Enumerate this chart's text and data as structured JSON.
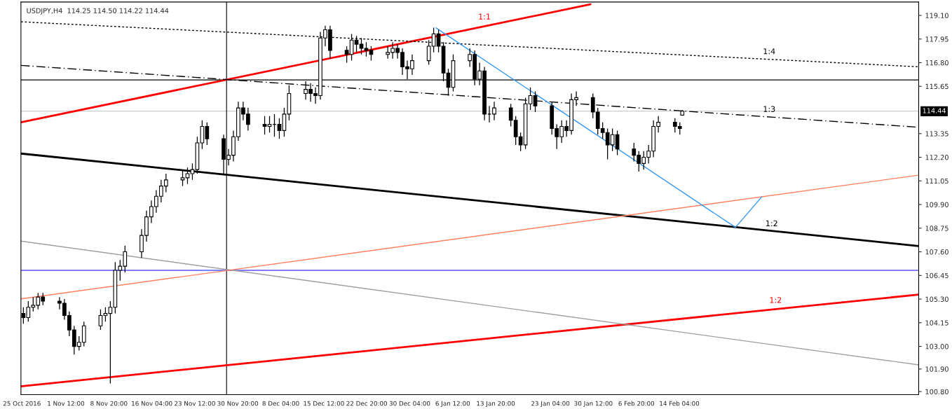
{
  "chart_data": {
    "type": "candlestick",
    "title": "USDJPY,H4  114.25 114.50 114.22 114.44",
    "x": [
      "2016-10-25T06:00",
      "2016-10-26T02:00",
      "2016-10-26T22:00",
      "2016-10-27T18:00",
      "2016-10-28T14:00",
      "2016-10-31T10:00",
      "2016-11-01T06:00",
      "2016-11-02T02:00",
      "2016-11-02T22:00",
      "2016-11-03T18:00",
      "2016-11-04T14:00",
      "2016-11-07T10:00",
      "2016-11-08T06:00",
      "2016-11-09T02:00",
      "2016-11-09T22:00",
      "2016-11-10T18:00",
      "2016-11-11T14:00",
      "2016-11-14T10:00",
      "2016-11-15T06:00",
      "2016-11-16T02:00",
      "2016-11-16T22:00",
      "2016-11-17T18:00",
      "2016-11-18T14:00",
      "2016-11-21T10:00",
      "2016-11-22T06:00",
      "2016-11-23T02:00",
      "2016-11-23T22:00",
      "2016-11-24T18:00",
      "2016-11-25T14:00",
      "2016-11-28T10:00",
      "2016-11-29T06:00",
      "2016-11-30T02:00",
      "2016-11-30T22:00",
      "2016-12-01T18:00",
      "2016-12-02T14:00",
      "2016-12-05T10:00",
      "2016-12-06T06:00",
      "2016-12-07T02:00",
      "2016-12-07T22:00",
      "2016-12-08T18:00",
      "2016-12-09T14:00",
      "2016-12-12T10:00",
      "2016-12-13T06:00",
      "2016-12-14T02:00",
      "2016-12-14T22:00",
      "2016-12-15T18:00",
      "2016-12-16T14:00",
      "2016-12-19T10:00",
      "2016-12-20T06:00",
      "2016-12-21T02:00",
      "2016-12-21T22:00",
      "2016-12-22T18:00",
      "2016-12-23T14:00",
      "2016-12-26T10:00",
      "2016-12-27T06:00",
      "2016-12-28T02:00",
      "2016-12-28T22:00",
      "2016-12-29T18:00",
      "2016-12-30T14:00",
      "2017-01-02T10:00",
      "2017-01-03T06:00",
      "2017-01-04T02:00",
      "2017-01-04T22:00",
      "2017-01-05T18:00",
      "2017-01-06T14:00",
      "2017-01-09T10:00",
      "2017-01-10T06:00",
      "2017-01-11T02:00",
      "2017-01-11T22:00",
      "2017-01-12T18:00",
      "2017-01-13T14:00",
      "2017-01-16T10:00",
      "2017-01-17T06:00",
      "2017-01-18T02:00",
      "2017-01-18T22:00",
      "2017-01-19T18:00",
      "2017-01-20T14:00",
      "2017-01-23T10:00",
      "2017-01-24T06:00",
      "2017-01-25T02:00",
      "2017-01-25T22:00",
      "2017-01-26T18:00",
      "2017-01-27T14:00",
      "2017-01-30T10:00",
      "2017-01-31T06:00",
      "2017-02-01T02:00",
      "2017-02-01T22:00",
      "2017-02-02T18:00",
      "2017-02-03T14:00",
      "2017-02-06T10:00",
      "2017-02-07T06:00",
      "2017-02-08T02:00",
      "2017-02-08T22:00",
      "2017-02-09T18:00",
      "2017-02-10T14:00",
      "2017-02-13T10:00",
      "2017-02-14T06:00",
      "2017-02-14T16:00"
    ],
    "ohlc": [
      [
        104.6,
        104.9,
        104.1,
        104.4
      ],
      [
        104.4,
        105.2,
        104.2,
        104.9
      ],
      [
        104.9,
        105.4,
        104.7,
        105.0
      ],
      [
        105.0,
        105.6,
        104.8,
        105.4
      ],
      [
        105.4,
        105.6,
        105.0,
        105.2
      ],
      [
        105.2,
        105.4,
        104.8,
        105.1
      ],
      [
        105.1,
        105.3,
        104.3,
        104.5
      ],
      [
        104.5,
        104.7,
        103.5,
        103.8
      ],
      [
        103.8,
        104.0,
        102.6,
        103.0
      ],
      [
        103.0,
        103.5,
        102.8,
        103.2
      ],
      [
        103.2,
        104.2,
        103.0,
        104.0
      ],
      [
        104.0,
        104.8,
        103.8,
        104.5
      ],
      [
        104.5,
        104.9,
        104.2,
        104.6
      ],
      [
        104.6,
        105.2,
        101.2,
        104.9
      ],
      [
        104.9,
        107.1,
        104.6,
        106.7
      ],
      [
        106.7,
        107.2,
        106.2,
        106.9
      ],
      [
        106.9,
        107.9,
        106.6,
        107.6
      ],
      [
        107.6,
        108.7,
        107.3,
        108.4
      ],
      [
        108.4,
        109.6,
        108.1,
        109.3
      ],
      [
        109.3,
        110.1,
        109.0,
        109.8
      ],
      [
        109.8,
        110.6,
        109.5,
        110.3
      ],
      [
        110.3,
        111.1,
        110.0,
        110.8
      ],
      [
        110.8,
        111.4,
        110.5,
        111.1
      ],
      [
        111.1,
        111.6,
        110.8,
        111.2
      ],
      [
        111.2,
        111.7,
        110.9,
        111.4
      ],
      [
        111.4,
        111.9,
        111.1,
        111.6
      ],
      [
        111.6,
        113.2,
        111.4,
        112.9
      ],
      [
        112.9,
        114.0,
        112.6,
        113.7
      ],
      [
        113.7,
        113.9,
        112.8,
        113.1
      ],
      [
        113.1,
        113.3,
        111.4,
        112.1
      ],
      [
        112.1,
        112.6,
        111.8,
        112.3
      ],
      [
        112.3,
        113.5,
        112.0,
        113.2
      ],
      [
        113.2,
        114.9,
        113.0,
        114.6
      ],
      [
        114.6,
        114.9,
        114.0,
        114.3
      ],
      [
        114.3,
        114.6,
        113.5,
        113.8
      ],
      [
        113.8,
        114.2,
        113.3,
        113.7
      ],
      [
        113.7,
        114.2,
        113.4,
        113.8
      ],
      [
        113.8,
        114.3,
        113.2,
        113.8
      ],
      [
        113.8,
        114.1,
        113.1,
        113.5
      ],
      [
        113.5,
        114.6,
        113.2,
        114.3
      ],
      [
        114.3,
        115.7,
        114.0,
        115.3
      ],
      [
        115.3,
        115.9,
        115.0,
        115.5
      ],
      [
        115.5,
        115.8,
        114.9,
        115.3
      ],
      [
        115.3,
        115.6,
        114.8,
        115.2
      ],
      [
        115.2,
        118.3,
        115.0,
        118.0
      ],
      [
        118.0,
        118.6,
        117.6,
        118.4
      ],
      [
        118.4,
        118.6,
        117.0,
        117.4
      ],
      [
        117.4,
        117.6,
        116.8,
        117.2
      ],
      [
        117.2,
        118.2,
        116.9,
        117.9
      ],
      [
        117.9,
        118.1,
        117.3,
        117.7
      ],
      [
        117.7,
        118.0,
        117.2,
        117.5
      ],
      [
        117.5,
        117.8,
        117.1,
        117.4
      ],
      [
        117.4,
        117.6,
        116.9,
        117.2
      ],
      [
        117.2,
        117.6,
        117.0,
        117.3
      ],
      [
        117.3,
        117.8,
        117.0,
        117.5
      ],
      [
        117.5,
        117.7,
        117.0,
        117.3
      ],
      [
        117.3,
        117.5,
        116.2,
        116.6
      ],
      [
        116.6,
        116.9,
        116.0,
        116.5
      ],
      [
        116.5,
        117.2,
        116.2,
        116.9
      ],
      [
        116.9,
        117.9,
        116.7,
        117.6
      ],
      [
        117.6,
        118.5,
        117.3,
        118.2
      ],
      [
        118.2,
        118.4,
        117.3,
        117.6
      ],
      [
        117.6,
        117.8,
        115.9,
        116.3
      ],
      [
        116.3,
        116.5,
        115.2,
        115.6
      ],
      [
        115.6,
        117.2,
        115.4,
        116.9
      ],
      [
        116.9,
        117.5,
        116.6,
        117.2
      ],
      [
        117.2,
        117.4,
        115.7,
        116.0
      ],
      [
        116.0,
        116.8,
        115.7,
        116.4
      ],
      [
        116.4,
        116.6,
        114.0,
        114.3
      ],
      [
        114.3,
        114.7,
        113.9,
        114.3
      ],
      [
        114.3,
        114.9,
        114.0,
        114.6
      ],
      [
        114.6,
        114.8,
        113.7,
        114.0
      ],
      [
        114.0,
        114.2,
        112.8,
        113.2
      ],
      [
        113.2,
        113.4,
        112.5,
        112.8
      ],
      [
        112.8,
        115.1,
        112.6,
        114.8
      ],
      [
        114.8,
        115.6,
        114.5,
        115.2
      ],
      [
        115.2,
        115.4,
        114.4,
        114.7
      ],
      [
        114.7,
        114.9,
        113.3,
        113.6
      ],
      [
        113.6,
        113.8,
        112.6,
        113.2
      ],
      [
        113.2,
        114.0,
        112.9,
        113.7
      ],
      [
        113.7,
        114.0,
        113.2,
        113.5
      ],
      [
        113.5,
        115.3,
        113.3,
        115.0
      ],
      [
        115.0,
        115.4,
        114.7,
        115.1
      ],
      [
        115.1,
        115.3,
        114.1,
        114.4
      ],
      [
        114.4,
        114.6,
        113.3,
        113.6
      ],
      [
        113.6,
        113.9,
        113.1,
        113.4
      ],
      [
        113.4,
        113.6,
        112.1,
        112.8
      ],
      [
        112.8,
        113.6,
        112.5,
        113.3
      ],
      [
        113.3,
        113.5,
        112.3,
        112.6
      ],
      [
        112.6,
        112.9,
        112.0,
        112.3
      ],
      [
        112.3,
        112.5,
        111.5,
        111.9
      ],
      [
        111.9,
        112.5,
        111.6,
        112.2
      ],
      [
        112.2,
        112.8,
        111.9,
        112.5
      ],
      [
        112.5,
        114.0,
        112.2,
        113.7
      ],
      [
        113.7,
        114.2,
        113.4,
        113.9
      ],
      [
        113.9,
        114.1,
        113.4,
        113.7
      ],
      [
        113.7,
        113.9,
        113.3,
        113.6
      ],
      [
        114.25,
        114.5,
        114.22,
        114.44
      ]
    ],
    "series": [
      {
        "type": "line",
        "color": "#ff0000",
        "x": [
          "2016-10-24T20:00",
          "2017-01-30T00:00"
        ],
        "values": [
          113.9,
          119.64
        ],
        "line_style": "solid"
      },
      {
        "type": "line",
        "color": "#ff0000",
        "x": [
          "2016-10-24T20:00",
          "2017-03-27T00:00"
        ],
        "values": [
          101.06,
          105.52
        ],
        "line_style": "solid"
      },
      {
        "type": "line",
        "color": "#000000",
        "x": [
          "2016-10-24T20:00",
          "2017-03-27T00:00"
        ],
        "values": [
          112.38,
          107.88
        ],
        "line_style": "solid"
      },
      {
        "type": "line",
        "color": "#000000",
        "x": [
          "2016-10-24T20:00",
          "2017-03-27T00:00"
        ],
        "values": [
          118.79,
          116.6
        ],
        "line_style": "dotted"
      },
      {
        "type": "line",
        "color": "#000000",
        "x": [
          "2016-10-24T20:00",
          "2017-03-27T00:00"
        ],
        "values": [
          116.67,
          113.66
        ],
        "line_style": "dashed"
      },
      {
        "type": "line",
        "color": "#a0a0a0",
        "x": [
          "2016-10-24T20:00",
          "2017-03-27T00:00"
        ],
        "values": [
          108.12,
          102.1
        ],
        "line_style": "solid"
      },
      {
        "type": "line",
        "color": "#ff8060",
        "x": [
          "2016-10-24T20:00",
          "2017-03-27T00:00"
        ],
        "values": [
          105.31,
          111.33
        ],
        "line_style": "solid"
      },
      {
        "type": "line",
        "color": "#3399ee",
        "x": [
          "2017-01-03T16:00",
          "2017-02-23T18:00",
          "2017-02-28T06:00"
        ],
        "values": [
          118.49,
          108.79,
          110.28
        ],
        "line_style": "solid"
      }
    ],
    "ref_lines": [
      {
        "axis": "y",
        "value": 115.96,
        "color": "#000000"
      },
      {
        "axis": "y",
        "value": 114.44,
        "label": "114.44",
        "color": "#c0c0c0"
      },
      {
        "axis": "y",
        "value": 106.7,
        "color": "#0000ff"
      },
      {
        "axis": "x",
        "value": "2016-11-28T22:00",
        "color": "#000000"
      }
    ],
    "annotations": [
      {
        "text": "1:1",
        "x": "2017-01-11T22:00",
        "y": 118.64
      },
      {
        "text": "1:4",
        "x": "2017-03-01T12:00",
        "y": 116.95
      },
      {
        "text": "1:3",
        "x": "2017-03-01T12:00",
        "y": 114.14
      },
      {
        "text": "1:2",
        "x": "2017-03-01T22:00",
        "y": 108.58
      },
      {
        "text": "1:2",
        "x": "2017-03-02T14:00",
        "y": 104.85
      }
    ],
    "xlim": [
      "2016-10-24T20:00",
      "2017-03-27T00:00"
    ],
    "ylim": [
      100.65,
      119.75
    ],
    "xticks": [
      {
        "value": "2016-10-25T00:00",
        "label": "25 Oct 2016"
      },
      {
        "value": "2016-11-01T12:00",
        "label": "1 Nov 12:00"
      },
      {
        "value": "2016-11-08T20:00",
        "label": "8 Nov 20:00"
      },
      {
        "value": "2016-11-16T04:00",
        "label": "16 Nov 04:00"
      },
      {
        "value": "2016-11-23T12:00",
        "label": "23 Nov 12:00"
      },
      {
        "value": "2016-11-30T20:00",
        "label": "30 Nov 20:00"
      },
      {
        "value": "2016-12-08T04:00",
        "label": "8 Dec 04:00"
      },
      {
        "value": "2016-12-15T12:00",
        "label": "15 Dec 12:00"
      },
      {
        "value": "2016-12-22T20:00",
        "label": "22 Dec 20:00"
      },
      {
        "value": "2016-12-30T04:00",
        "label": "30 Dec 04:00"
      },
      {
        "value": "2017-01-06T12:00",
        "label": "6 Jan 12:00"
      },
      {
        "value": "2017-01-13T20:00",
        "label": "13 Jan 20:00"
      },
      {
        "value": "2017-01-23T04:00",
        "label": "23 Jan 04:00"
      },
      {
        "value": "2017-01-30T12:00",
        "label": "30 Jan 12:00"
      },
      {
        "value": "2017-02-06T20:00",
        "label": "6 Feb 20:00"
      },
      {
        "value": "2017-02-14T04:00",
        "label": "14 Feb 04:00"
      }
    ],
    "yticks": [
      {
        "value": 119.1,
        "label": "119.10"
      },
      {
        "value": 117.95,
        "label": "117.95"
      },
      {
        "value": 116.8,
        "label": "116.80"
      },
      {
        "value": 115.65,
        "label": "115.65"
      },
      {
        "value": 113.35,
        "label": "113.35"
      },
      {
        "value": 112.2,
        "label": "112.20"
      },
      {
        "value": 111.05,
        "label": "111.05"
      },
      {
        "value": 109.9,
        "label": "109.90"
      },
      {
        "value": 108.75,
        "label": "108.75"
      },
      {
        "value": 107.6,
        "label": "107.60"
      },
      {
        "value": 106.45,
        "label": "106.45"
      },
      {
        "value": 105.3,
        "label": "105.30"
      },
      {
        "value": 104.15,
        "label": "104.15"
      },
      {
        "value": 103.0,
        "label": "103.00"
      },
      {
        "value": 101.9,
        "label": "101.90"
      },
      {
        "value": 100.8,
        "label": "100.80"
      }
    ],
    "grid": false,
    "legend": false
  }
}
